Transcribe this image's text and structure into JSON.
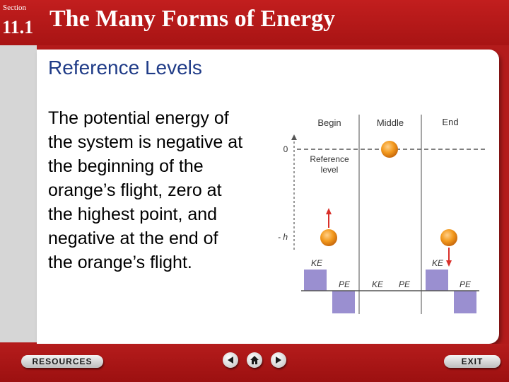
{
  "header": {
    "section_word": "Section",
    "section_number": "11.1",
    "title": "The Many Forms of Energy"
  },
  "content": {
    "subtitle": "Reference Levels",
    "body_lines": [
      "The potential energy of",
      "the system is negative at",
      "the beginning of the",
      "orange’s flight, zero at",
      "the highest point, and",
      "negative at the end of",
      "the orange’s flight."
    ]
  },
  "figure": {
    "columns": [
      "Begin",
      "Middle",
      "End"
    ],
    "zero_label": "0",
    "neg_h_label": "- h",
    "reference_label_lines": [
      "Reference",
      "level"
    ],
    "bar_labels": {
      "begin_ke": "KE",
      "begin_pe": "PE",
      "middle_ke": "KE",
      "middle_pe": "PE",
      "end_ke": "KE",
      "end_pe": "PE"
    },
    "colors": {
      "orange": "#f39a1e",
      "bar": "#9a8fd0",
      "arrow": "#d9302a"
    }
  },
  "footer": {
    "resources_label": "RESOURCES",
    "exit_label": "EXIT",
    "icons": [
      "prev-arrow-icon",
      "home-icon",
      "next-arrow-icon"
    ]
  }
}
